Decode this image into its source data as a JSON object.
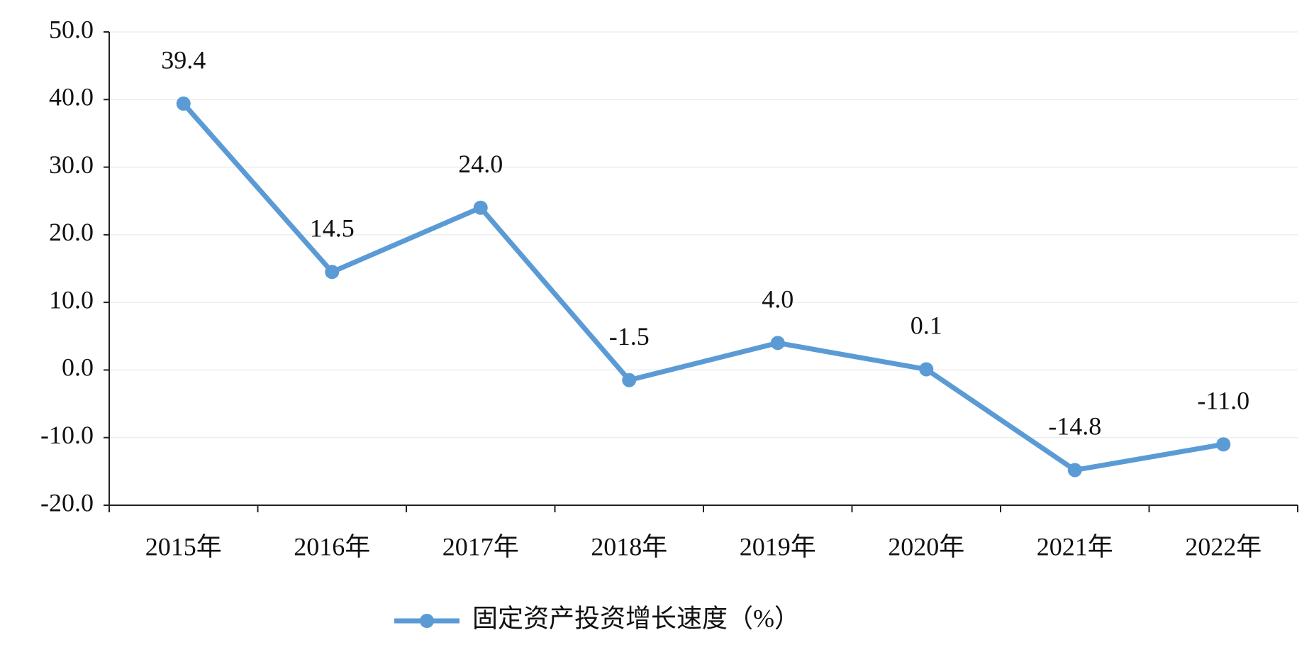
{
  "chart_data": {
    "type": "line",
    "categories": [
      "2015年",
      "2016年",
      "2017年",
      "2018年",
      "2019年",
      "2020年",
      "2021年",
      "2022年"
    ],
    "series": [
      {
        "name": "固定资产投资增长速度（%）",
        "color": "#5b9bd5",
        "values": [
          39.4,
          14.5,
          24.0,
          -1.5,
          4.0,
          0.1,
          -14.8,
          -11.0
        ],
        "value_labels": [
          "39.4",
          "14.5",
          "24.0",
          "-1.5",
          "4.0",
          "0.1",
          "-14.8",
          "-11.0"
        ]
      }
    ],
    "ylim": [
      -20,
      50
    ],
    "yticks": [
      {
        "value": -20,
        "label": "-20.0"
      },
      {
        "value": -10,
        "label": "-10.0"
      },
      {
        "value": 0,
        "label": "0.0"
      },
      {
        "value": 10,
        "label": "10.0"
      },
      {
        "value": 20,
        "label": "20.0"
      },
      {
        "value": 30,
        "label": "30.0"
      },
      {
        "value": 40,
        "label": "40.0"
      },
      {
        "value": 50,
        "label": "50.0"
      }
    ],
    "grid": true,
    "legend": "bottom"
  }
}
